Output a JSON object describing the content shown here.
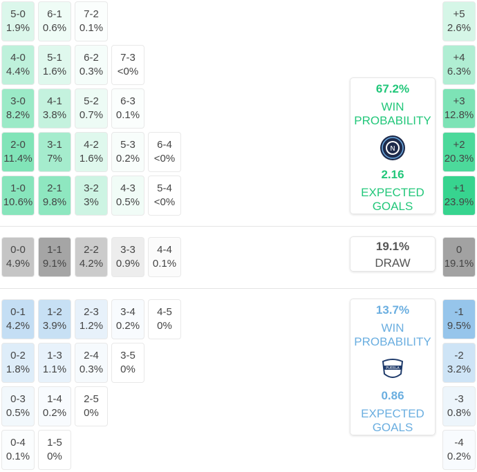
{
  "colors": {
    "home": "#1fcf82",
    "draw": "#8c8c8c",
    "away": "#7db7e6",
    "home_text": "#22c77a",
    "away_text": "#6aaee0"
  },
  "home_rows": [
    [
      {
        "s": "5-0",
        "p": "1.9%"
      },
      {
        "s": "6-1",
        "p": "0.6%"
      },
      {
        "s": "7-2",
        "p": "0.1%"
      }
    ],
    [
      {
        "s": "4-0",
        "p": "4.4%"
      },
      {
        "s": "5-1",
        "p": "1.6%"
      },
      {
        "s": "6-2",
        "p": "0.3%"
      },
      {
        "s": "7-3",
        "p": "<0%"
      }
    ],
    [
      {
        "s": "3-0",
        "p": "8.2%"
      },
      {
        "s": "4-1",
        "p": "3.8%"
      },
      {
        "s": "5-2",
        "p": "0.7%"
      },
      {
        "s": "6-3",
        "p": "0.1%"
      }
    ],
    [
      {
        "s": "2-0",
        "p": "11.4%"
      },
      {
        "s": "3-1",
        "p": "7%"
      },
      {
        "s": "4-2",
        "p": "1.6%"
      },
      {
        "s": "5-3",
        "p": "0.2%"
      },
      {
        "s": "6-4",
        "p": "<0%"
      }
    ],
    [
      {
        "s": "1-0",
        "p": "10.6%"
      },
      {
        "s": "2-1",
        "p": "9.8%"
      },
      {
        "s": "3-2",
        "p": "3%"
      },
      {
        "s": "4-3",
        "p": "0.5%"
      },
      {
        "s": "5-4",
        "p": "<0%"
      }
    ]
  ],
  "draw_row": [
    {
      "s": "0-0",
      "p": "4.9%"
    },
    {
      "s": "1-1",
      "p": "9.1%"
    },
    {
      "s": "2-2",
      "p": "4.2%"
    },
    {
      "s": "3-3",
      "p": "0.9%"
    },
    {
      "s": "4-4",
      "p": "0.1%"
    }
  ],
  "away_rows": [
    [
      {
        "s": "0-1",
        "p": "4.2%"
      },
      {
        "s": "1-2",
        "p": "3.9%"
      },
      {
        "s": "2-3",
        "p": "1.2%"
      },
      {
        "s": "3-4",
        "p": "0.2%"
      },
      {
        "s": "4-5",
        "p": "0%"
      }
    ],
    [
      {
        "s": "0-2",
        "p": "1.8%"
      },
      {
        "s": "1-3",
        "p": "1.1%"
      },
      {
        "s": "2-4",
        "p": "0.3%"
      },
      {
        "s": "3-5",
        "p": "0%"
      }
    ],
    [
      {
        "s": "0-3",
        "p": "0.5%"
      },
      {
        "s": "1-4",
        "p": "0.2%"
      },
      {
        "s": "2-5",
        "p": "0%"
      }
    ],
    [
      {
        "s": "0-4",
        "p": "0.1%"
      },
      {
        "s": "1-5",
        "p": "0%"
      }
    ]
  ],
  "margins_home": [
    {
      "s": "+5",
      "p": "2.6%"
    },
    {
      "s": "+4",
      "p": "6.3%"
    },
    {
      "s": "+3",
      "p": "12.8%"
    },
    {
      "s": "+2",
      "p": "20.3%"
    },
    {
      "s": "+1",
      "p": "23.9%"
    }
  ],
  "margin_draw": {
    "s": "0",
    "p": "19.1%"
  },
  "margins_away": [
    {
      "s": "-1",
      "p": "9.5%"
    },
    {
      "s": "-2",
      "p": "3.2%"
    },
    {
      "s": "-3",
      "p": "0.8%"
    },
    {
      "s": "-4",
      "p": "0.2%"
    }
  ],
  "home_summary": {
    "win_pct": "67.2%",
    "win_label_1": "WIN",
    "win_label_2": "PROBABILITY",
    "xg": "2.16",
    "xg_label_1": "EXPECTED",
    "xg_label_2": "GOALS",
    "logo": "nycfc-crest"
  },
  "draw_summary": {
    "pct": "19.1%",
    "label": "DRAW"
  },
  "away_summary": {
    "win_pct": "13.7%",
    "win_label_1": "WIN",
    "win_label_2": "PROBABILITY",
    "xg": "0.86",
    "xg_label_1": "EXPECTED",
    "xg_label_2": "GOALS",
    "logo": "puebla-crest"
  }
}
